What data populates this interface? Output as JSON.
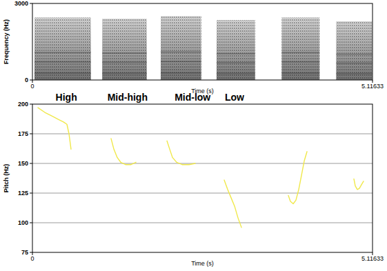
{
  "chart_data": [
    {
      "type": "spectrogram",
      "x_label": "Time (s)",
      "y_label": "Frequency (Hz)",
      "xlim": [
        0,
        5.11633
      ],
      "xticks": [
        0,
        5.11633
      ],
      "ylim": [
        0,
        3000
      ],
      "yticks": [
        0,
        3000
      ],
      "segments": [
        {
          "start": 0.03,
          "end": 0.88,
          "top": 2450
        },
        {
          "start": 1.05,
          "end": 1.72,
          "top": 2400
        },
        {
          "start": 1.93,
          "end": 2.54,
          "top": 2500
        },
        {
          "start": 2.77,
          "end": 3.35,
          "top": 2350
        },
        {
          "start": 3.75,
          "end": 4.32,
          "top": 2450
        },
        {
          "start": 4.57,
          "end": 5.11,
          "top": 2300
        }
      ]
    },
    {
      "type": "line",
      "x_label": "Time (s)",
      "y_label": "Pitch (Hz)",
      "xlim": [
        0,
        5.11633
      ],
      "xticks": [
        0,
        5.11633
      ],
      "ylim": [
        75,
        200
      ],
      "yticks": [
        75,
        100,
        125,
        150,
        175,
        200
      ],
      "grid": true,
      "color": "#f0e84a",
      "annotations": [
        {
          "text": "High",
          "x": 0.51
        },
        {
          "text": "Mid-high",
          "x": 1.43
        },
        {
          "text": "Mid-low",
          "x": 2.41
        },
        {
          "text": "Low",
          "x": 3.04
        }
      ],
      "series": [
        {
          "x": [
            0.083,
            0.187,
            0.291,
            0.394,
            0.467,
            0.519,
            0.55,
            0.581
          ],
          "values": [
            197,
            193,
            190,
            187,
            185,
            183,
            175,
            162
          ]
        },
        {
          "x": [
            1.183,
            1.225,
            1.276,
            1.328,
            1.401,
            1.484,
            1.557
          ],
          "values": [
            171,
            162,
            155,
            151,
            149,
            149,
            151
          ]
        },
        {
          "x": [
            2.024,
            2.065,
            2.107,
            2.169,
            2.252,
            2.356,
            2.449
          ],
          "values": [
            169,
            162,
            155,
            151,
            149,
            149,
            150
          ]
        },
        {
          "x": [
            2.885,
            2.937,
            2.989,
            3.041,
            3.093,
            3.145
          ],
          "values": [
            136,
            128,
            121,
            114,
            104,
            96
          ]
        },
        {
          "x": [
            3.85,
            3.881,
            3.923,
            3.964,
            4.006,
            4.048,
            4.089,
            4.131
          ],
          "values": [
            123,
            118,
            116,
            119,
            128,
            140,
            152,
            160
          ]
        },
        {
          "x": [
            4.836,
            4.857,
            4.888,
            4.919,
            4.95,
            4.981
          ],
          "values": [
            137,
            131,
            128,
            129,
            132,
            135
          ]
        }
      ]
    }
  ]
}
